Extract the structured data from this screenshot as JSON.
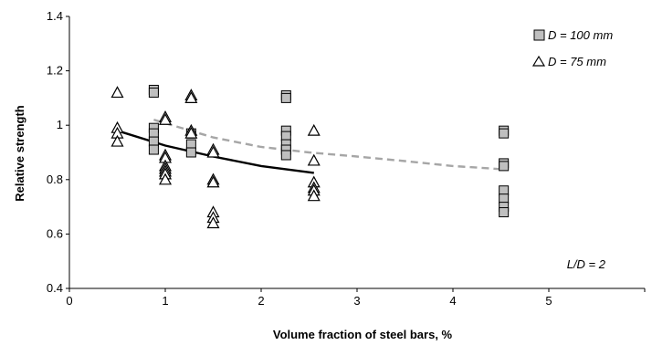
{
  "chart_data": {
    "type": "scatter",
    "title": "",
    "xlabel": "Volume fraction of steel bars, %",
    "ylabel": "Relative strength",
    "xlim": [
      0,
      6
    ],
    "ylim": [
      0.4,
      1.4
    ],
    "x_ticks": [
      "0",
      "1",
      "2",
      "3",
      "4",
      "5"
    ],
    "y_ticks": [
      "0.4",
      "0.6",
      "0.8",
      "1",
      "1.2",
      "1.4"
    ],
    "grid": false,
    "legend_position": "top-right",
    "series": [
      {
        "name": "D = 100 mm",
        "marker": "square",
        "color": "#bfbfbf",
        "points": [
          [
            0.88,
            1.13
          ],
          [
            0.88,
            1.12
          ],
          [
            0.88,
            0.99
          ],
          [
            0.88,
            0.97
          ],
          [
            0.88,
            0.94
          ],
          [
            0.88,
            0.91
          ],
          [
            1.27,
            0.97
          ],
          [
            1.27,
            0.93
          ],
          [
            1.27,
            0.9
          ],
          [
            2.26,
            1.11
          ],
          [
            2.26,
            1.1
          ],
          [
            2.26,
            0.98
          ],
          [
            2.26,
            0.96
          ],
          [
            2.26,
            0.93
          ],
          [
            2.26,
            0.91
          ],
          [
            2.26,
            0.89
          ],
          [
            4.53,
            0.98
          ],
          [
            4.53,
            0.97
          ],
          [
            4.53,
            0.86
          ],
          [
            4.53,
            0.85
          ],
          [
            4.53,
            0.76
          ],
          [
            4.53,
            0.73
          ],
          [
            4.53,
            0.7
          ],
          [
            4.53,
            0.68
          ]
        ]
      },
      {
        "name": "D = 75 mm",
        "marker": "triangle",
        "color": "#ffffff",
        "points": [
          [
            0.5,
            1.12
          ],
          [
            0.5,
            0.99
          ],
          [
            0.5,
            0.97
          ],
          [
            0.5,
            0.94
          ],
          [
            1.0,
            1.03
          ],
          [
            1.0,
            1.02
          ],
          [
            1.0,
            0.89
          ],
          [
            1.0,
            0.88
          ],
          [
            1.0,
            0.85
          ],
          [
            1.0,
            0.84
          ],
          [
            1.0,
            0.83
          ],
          [
            1.0,
            0.82
          ],
          [
            1.0,
            0.8
          ],
          [
            1.27,
            1.11
          ],
          [
            1.27,
            1.1
          ],
          [
            1.27,
            0.98
          ],
          [
            1.27,
            0.97
          ],
          [
            1.5,
            0.91
          ],
          [
            1.5,
            0.9
          ],
          [
            1.5,
            0.8
          ],
          [
            1.5,
            0.79
          ],
          [
            1.5,
            0.68
          ],
          [
            1.5,
            0.66
          ],
          [
            1.5,
            0.64
          ],
          [
            2.55,
            0.98
          ],
          [
            2.55,
            0.87
          ],
          [
            2.55,
            0.79
          ],
          [
            2.55,
            0.77
          ],
          [
            2.55,
            0.76
          ],
          [
            2.55,
            0.74
          ]
        ]
      }
    ],
    "trend_lines": [
      {
        "style": "solid",
        "color": "#000000",
        "points": [
          [
            0.5,
            0.98
          ],
          [
            1.0,
            0.925
          ],
          [
            1.5,
            0.885
          ],
          [
            2.0,
            0.85
          ],
          [
            2.55,
            0.825
          ]
        ]
      },
      {
        "style": "dashed",
        "color": "#a6a6a6",
        "points": [
          [
            0.88,
            1.02
          ],
          [
            1.5,
            0.955
          ],
          [
            2.0,
            0.92
          ],
          [
            2.5,
            0.9
          ],
          [
            3.0,
            0.885
          ],
          [
            3.5,
            0.868
          ],
          [
            4.0,
            0.85
          ],
          [
            4.53,
            0.838
          ]
        ]
      }
    ],
    "annotations": [
      "L/D = 2"
    ]
  }
}
